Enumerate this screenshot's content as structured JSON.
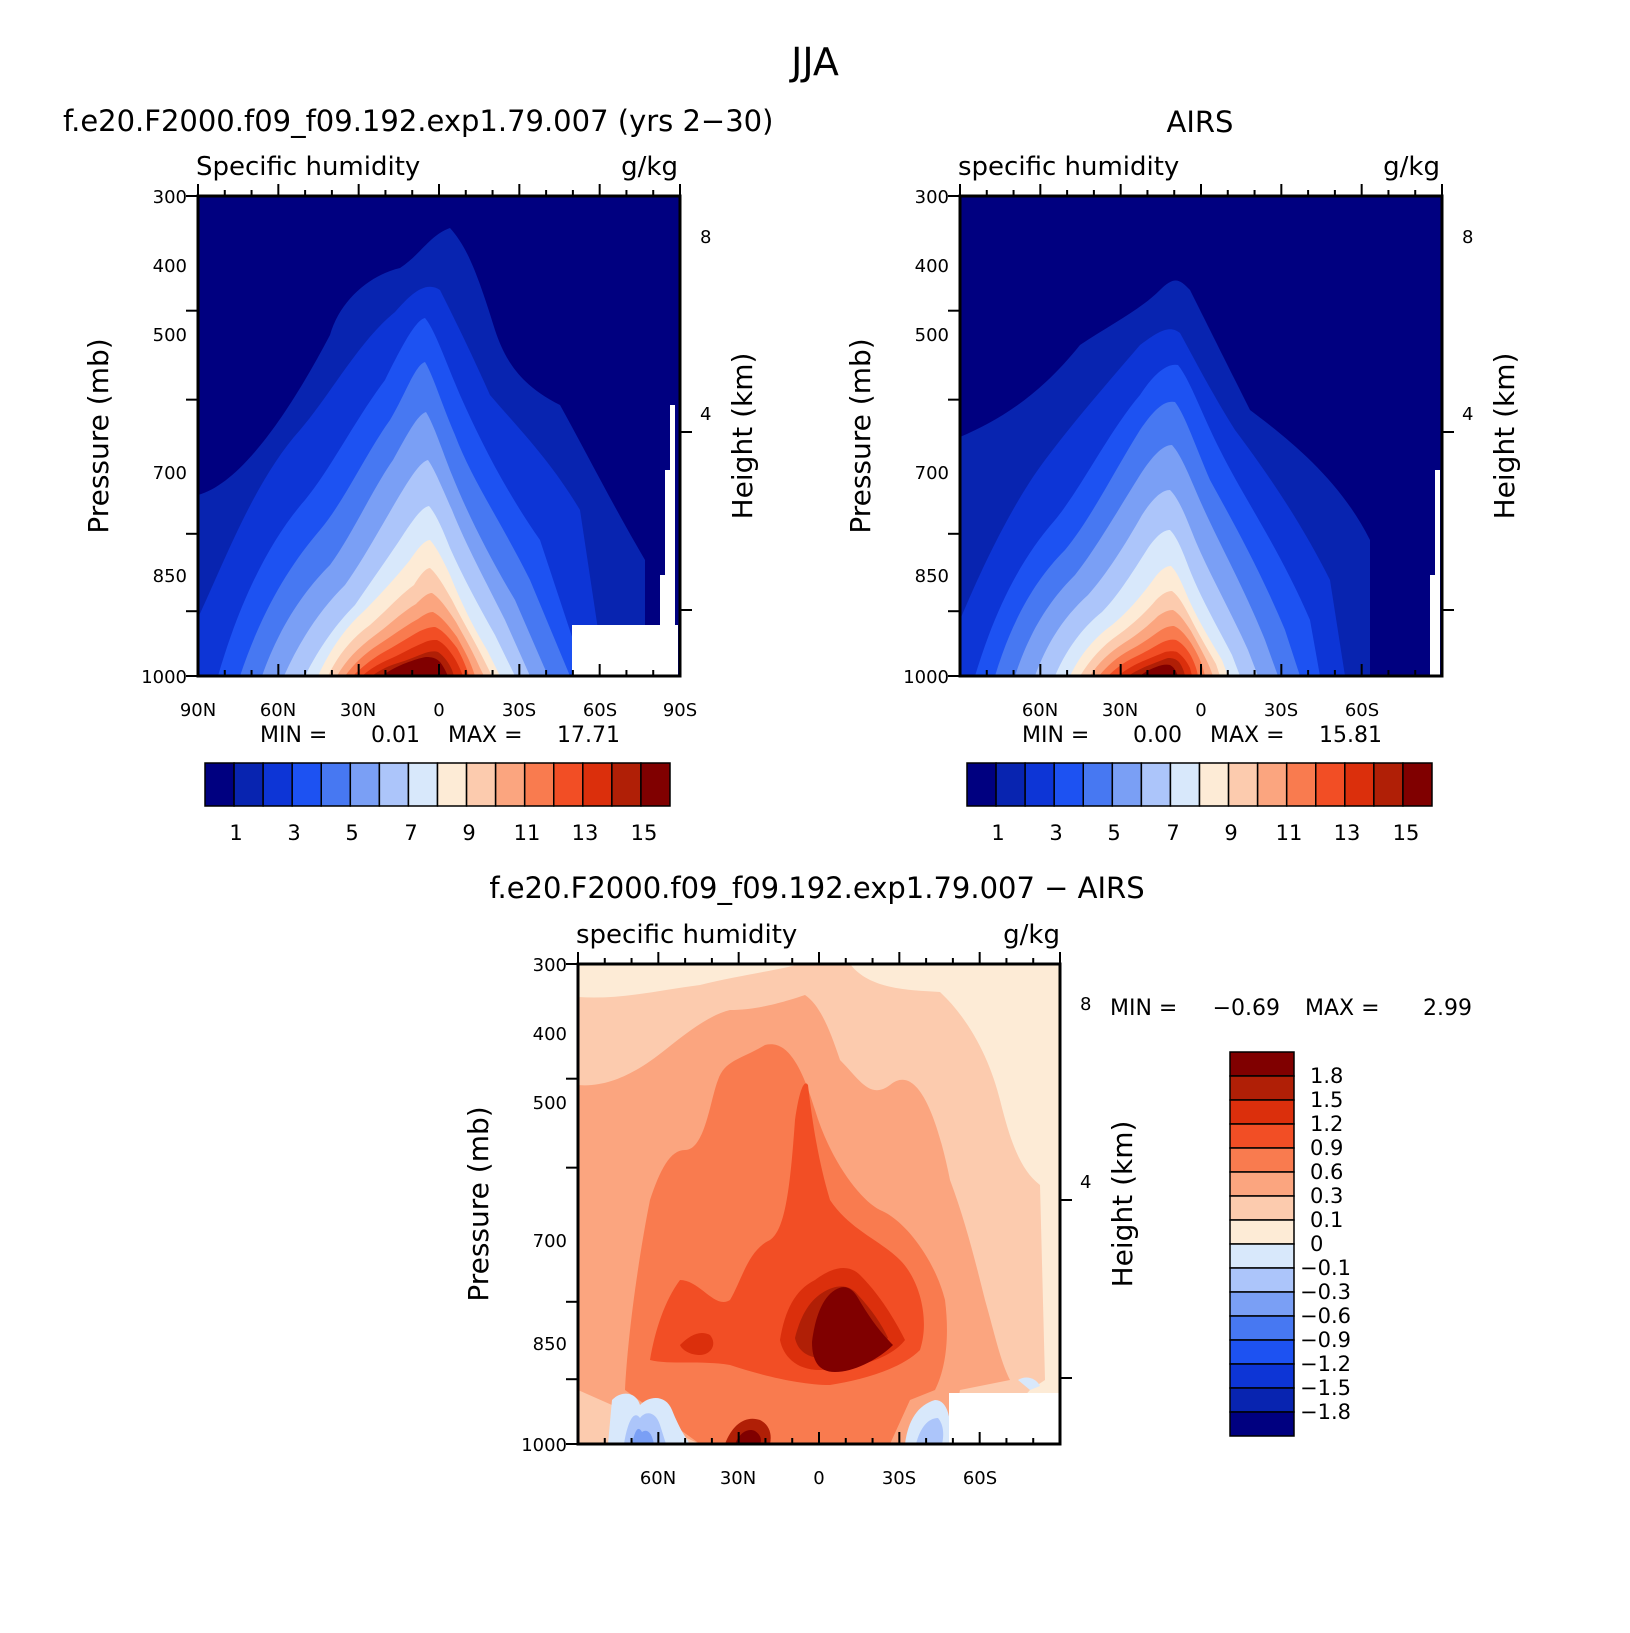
{
  "page": {
    "title": "JJA"
  },
  "chart_data": [
    {
      "type": "heatmap",
      "title": "f.e20.F2000.f09_f09.192.exp1.79.007 (yrs 2−30)",
      "left_string": "Specific humidity",
      "right_string": "g/kg",
      "xlabel": "",
      "ylabel": "Pressure (mb)",
      "ylabel_right": "Height (km)",
      "x_ticks": [
        "90N",
        "60N",
        "30N",
        "0",
        "30S",
        "60S",
        "90S"
      ],
      "y_ticks": [
        "300",
        "400",
        "500",
        "700",
        "850",
        "1000"
      ],
      "y_ticks_right": [
        "8",
        "4"
      ],
      "xlim": [
        90,
        -90
      ],
      "ylim": [
        1000,
        300
      ],
      "min_label": "MIN =",
      "min_value": "0.01",
      "max_label": "MAX =",
      "max_value": "17.71",
      "levels": [
        1,
        2,
        3,
        4,
        5,
        6,
        7,
        8,
        9,
        10,
        11,
        12,
        13,
        14,
        15
      ],
      "colorbar_labels": [
        "1",
        "3",
        "5",
        "7",
        "9",
        "11",
        "13",
        "15"
      ],
      "peak": {
        "lat": 10,
        "pressure": 1000,
        "value": 17.71
      },
      "colors": [
        "#000080",
        "#0824b0",
        "#0d35d6",
        "#1d52f2",
        "#4778f2",
        "#7a9ff5",
        "#acc5fa",
        "#d8e8fb",
        "#fdebd6",
        "#fccbae",
        "#fba57f",
        "#f97b4f",
        "#f24e25",
        "#db2f0c",
        "#b01f06",
        "#800000"
      ]
    },
    {
      "type": "heatmap",
      "title": "AIRS",
      "left_string": "specific humidity",
      "right_string": "g/kg",
      "xlabel": "",
      "ylabel": "Pressure (mb)",
      "ylabel_right": "Height (km)",
      "x_ticks": [
        "60N",
        "30N",
        "0",
        "30S",
        "60S"
      ],
      "y_ticks": [
        "300",
        "400",
        "500",
        "700",
        "850",
        "1000"
      ],
      "y_ticks_right": [
        "8",
        "4"
      ],
      "xlim": [
        90,
        -90
      ],
      "ylim": [
        1000,
        300
      ],
      "min_label": "MIN =",
      "min_value": "0.00",
      "max_label": "MAX =",
      "max_value": "15.81",
      "levels": [
        1,
        2,
        3,
        4,
        5,
        6,
        7,
        8,
        9,
        10,
        11,
        12,
        13,
        14,
        15
      ],
      "colorbar_labels": [
        "1",
        "3",
        "5",
        "7",
        "9",
        "11",
        "13",
        "15"
      ],
      "peak": {
        "lat": 10,
        "pressure": 1000,
        "value": 15.81
      },
      "colors": [
        "#000080",
        "#0824b0",
        "#0d35d6",
        "#1d52f2",
        "#4778f2",
        "#7a9ff5",
        "#acc5fa",
        "#d8e8fb",
        "#fdebd6",
        "#fccbae",
        "#fba57f",
        "#f97b4f",
        "#f24e25",
        "#db2f0c",
        "#b01f06",
        "#800000"
      ]
    },
    {
      "type": "heatmap",
      "title": "f.e20.F2000.f09_f09.192.exp1.79.007 − AIRS",
      "left_string": "specific humidity",
      "right_string": "g/kg",
      "xlabel": "",
      "ylabel": "Pressure (mb)",
      "ylabel_right": "Height (km)",
      "x_ticks": [
        "60N",
        "30N",
        "0",
        "30S",
        "60S"
      ],
      "y_ticks": [
        "300",
        "400",
        "500",
        "700",
        "850",
        "1000"
      ],
      "y_ticks_right": [
        "8",
        "4"
      ],
      "xlim": [
        90,
        -90
      ],
      "ylim": [
        1000,
        300
      ],
      "min_label": "MIN =",
      "min_value": "−0.69",
      "max_label": "MAX =",
      "max_value": "2.99",
      "levels": [
        -1.8,
        -1.5,
        -1.2,
        -0.9,
        -0.6,
        -0.3,
        -0.1,
        0,
        0.1,
        0.3,
        0.6,
        0.9,
        1.2,
        1.5,
        1.8
      ],
      "colorbar_labels": [
        "1.8",
        "1.5",
        "1.2",
        "0.9",
        "0.6",
        "0.3",
        "0.1",
        "0",
        "−0.1",
        "−0.3",
        "−0.6",
        "−0.9",
        "−1.2",
        "−1.5",
        "−1.8"
      ],
      "peak": {
        "lat": -10,
        "pressure": 850,
        "value": 2.99
      },
      "colors": [
        "#800000",
        "#b01f06",
        "#db2f0c",
        "#f24e25",
        "#f97b4f",
        "#fba57f",
        "#fccbae",
        "#fdebd6",
        "#d8e8fb",
        "#acc5fa",
        "#7a9ff5",
        "#4778f2",
        "#1d52f2",
        "#0d35d6",
        "#0824b0",
        "#000080"
      ]
    }
  ]
}
